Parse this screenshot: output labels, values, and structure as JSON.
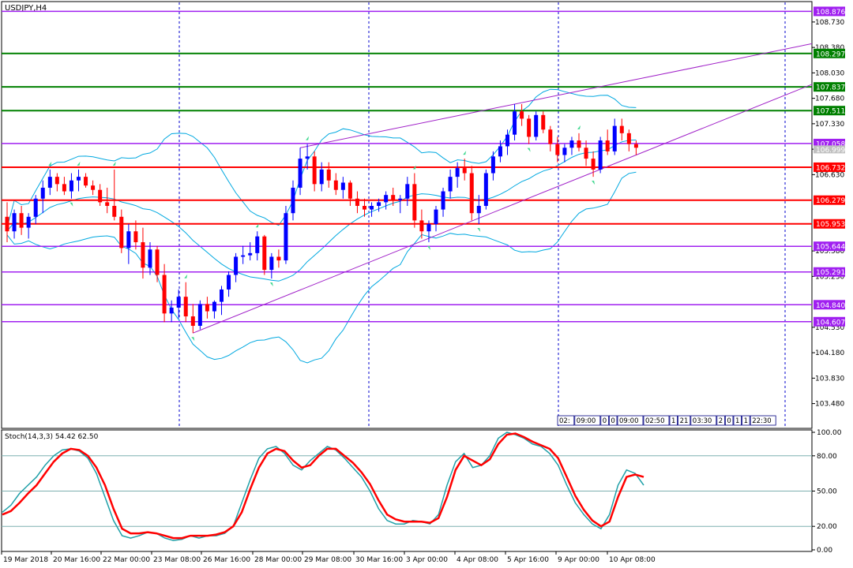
{
  "chart_data": [
    {
      "type": "candlestick",
      "title": "USDJPY,H4",
      "y_ticks": [
        "108.730",
        "108.380",
        "108.030",
        "107.680",
        "107.330",
        "106.980",
        "106.630",
        "105.580",
        "105.230",
        "104.530",
        "104.180",
        "103.830",
        "103.480"
      ],
      "y_range": [
        103.15,
        109.0
      ],
      "x_ticks": [
        "19 Mar 2018",
        "20 Mar 16:00",
        "22 Mar 00:00",
        "23 Mar 08:00",
        "26 Mar 16:00",
        "28 Mar 00:00",
        "29 Mar 08:00",
        "30 Mar 16:00",
        "3 Apr 00:00",
        "4 Apr 08:00",
        "5 Apr 16:00",
        "9 Apr 00:00",
        "10 Apr 08:00"
      ],
      "colors": {
        "bull": "#0000ff",
        "bear": "#ff0000",
        "bands": "#00a8e0",
        "trend": "#a020c8",
        "fractal": "#40d890"
      },
      "levels": [
        {
          "value": "108.876",
          "color": "#a020f0"
        },
        {
          "value": "108.297",
          "color": "#008000"
        },
        {
          "value": "107.837",
          "color": "#008000"
        },
        {
          "value": "107.511",
          "color": "#008000"
        },
        {
          "value": "107.058",
          "color": "#a020f0"
        },
        {
          "value": "106.732",
          "color": "#ff0000"
        },
        {
          "value": "106.279",
          "color": "#ff0000"
        },
        {
          "value": "105.953",
          "color": "#ff0000"
        },
        {
          "value": "105.644",
          "color": "#a020f0"
        },
        {
          "value": "105.291",
          "color": "#a020f0"
        },
        {
          "value": "104.840",
          "color": "#a020f0"
        },
        {
          "value": "104.607",
          "color": "#a020f0"
        }
      ],
      "current_price": "106.999",
      "time_box": [
        "02:",
        "09:00",
        "0",
        "0",
        "09:00",
        "02:50",
        "1",
        "21",
        "03:30",
        "2",
        "0",
        "1",
        "1",
        "22:30"
      ],
      "candles": [
        [
          106.05,
          106.25,
          105.7,
          105.85
        ],
        [
          105.85,
          106.15,
          105.75,
          106.1
        ],
        [
          106.1,
          106.2,
          105.8,
          105.9
        ],
        [
          105.9,
          106.1,
          105.75,
          106.05
        ],
        [
          106.05,
          106.35,
          105.95,
          106.3
        ],
        [
          106.3,
          106.55,
          106.1,
          106.45
        ],
        [
          106.45,
          106.7,
          106.35,
          106.6
        ],
        [
          106.6,
          106.65,
          106.4,
          106.5
        ],
        [
          106.5,
          106.6,
          106.35,
          106.4
        ],
        [
          106.4,
          106.65,
          106.3,
          106.55
        ],
        [
          106.55,
          106.7,
          106.4,
          106.6
        ],
        [
          106.6,
          106.65,
          106.45,
          106.48
        ],
        [
          106.48,
          106.55,
          106.35,
          106.42
        ],
        [
          106.42,
          106.5,
          106.2,
          106.25
        ],
        [
          106.25,
          106.45,
          106.1,
          106.2
        ],
        [
          106.2,
          106.7,
          106.0,
          106.05
        ],
        [
          106.05,
          106.15,
          105.55,
          105.62
        ],
        [
          105.62,
          105.95,
          105.4,
          105.85
        ],
        [
          105.85,
          106.0,
          105.6,
          105.7
        ],
        [
          105.7,
          105.9,
          105.2,
          105.35
        ],
        [
          105.35,
          105.7,
          105.25,
          105.6
        ],
        [
          105.6,
          105.65,
          105.15,
          105.25
        ],
        [
          105.25,
          105.4,
          104.6,
          104.72
        ],
        [
          104.72,
          104.9,
          104.6,
          104.8
        ],
        [
          104.8,
          105.05,
          104.65,
          104.95
        ],
        [
          104.95,
          105.15,
          104.6,
          104.68
        ],
        [
          104.68,
          104.85,
          104.45,
          104.55
        ],
        [
          104.55,
          104.9,
          104.5,
          104.85
        ],
        [
          104.85,
          104.95,
          104.65,
          104.75
        ],
        [
          104.75,
          104.9,
          104.65,
          104.88
        ],
        [
          104.88,
          105.1,
          104.7,
          105.05
        ],
        [
          105.05,
          105.3,
          104.95,
          105.25
        ],
        [
          105.25,
          105.55,
          105.15,
          105.5
        ],
        [
          105.5,
          105.65,
          105.4,
          105.52
        ],
        [
          105.52,
          105.7,
          105.45,
          105.55
        ],
        [
          105.55,
          105.85,
          105.45,
          105.78
        ],
        [
          105.78,
          105.8,
          105.25,
          105.32
        ],
        [
          105.32,
          105.55,
          105.2,
          105.5
        ],
        [
          105.5,
          105.6,
          105.35,
          105.45
        ],
        [
          105.45,
          106.2,
          105.4,
          106.1
        ],
        [
          106.1,
          106.55,
          106.0,
          106.45
        ],
        [
          106.45,
          107.0,
          106.35,
          106.85
        ],
        [
          106.85,
          107.05,
          106.7,
          106.88
        ],
        [
          106.88,
          106.95,
          106.4,
          106.5
        ],
        [
          106.5,
          106.8,
          106.4,
          106.7
        ],
        [
          106.7,
          106.8,
          106.45,
          106.55
        ],
        [
          106.55,
          106.65,
          106.35,
          106.42
        ],
        [
          106.42,
          106.6,
          106.3,
          106.52
        ],
        [
          106.52,
          106.55,
          106.2,
          106.3
        ],
        [
          106.3,
          106.4,
          106.1,
          106.2
        ],
        [
          106.2,
          106.3,
          106.05,
          106.15
        ],
        [
          106.15,
          106.25,
          106.05,
          106.2
        ],
        [
          106.2,
          106.3,
          106.12,
          106.25
        ],
        [
          106.25,
          106.4,
          106.15,
          106.35
        ],
        [
          106.35,
          106.45,
          106.2,
          106.28
        ],
        [
          106.28,
          106.35,
          106.1,
          106.3
        ],
        [
          106.3,
          106.6,
          106.2,
          106.5
        ],
        [
          106.5,
          106.65,
          105.9,
          106.0
        ],
        [
          106.0,
          106.15,
          105.75,
          105.85
        ],
        [
          105.85,
          106.0,
          105.7,
          105.95
        ],
        [
          105.95,
          106.2,
          105.85,
          106.15
        ],
        [
          106.15,
          106.45,
          106.05,
          106.4
        ],
        [
          106.4,
          106.7,
          106.3,
          106.6
        ],
        [
          106.6,
          106.8,
          106.45,
          106.72
        ],
        [
          106.72,
          106.85,
          106.55,
          106.65
        ],
        [
          106.65,
          106.75,
          106.0,
          106.1
        ],
        [
          106.1,
          106.35,
          105.95,
          106.2
        ],
        [
          106.2,
          106.7,
          106.15,
          106.65
        ],
        [
          106.65,
          106.95,
          106.55,
          106.88
        ],
        [
          106.88,
          107.1,
          106.8,
          107.02
        ],
        [
          107.02,
          107.25,
          106.9,
          107.18
        ],
        [
          107.18,
          107.6,
          107.1,
          107.5
        ],
        [
          107.5,
          107.6,
          107.3,
          107.4
        ],
        [
          107.4,
          107.45,
          107.05,
          107.15
        ],
        [
          107.15,
          107.5,
          107.1,
          107.45
        ],
        [
          107.45,
          107.5,
          107.2,
          107.25
        ],
        [
          107.25,
          107.3,
          106.95,
          107.05
        ],
        [
          107.05,
          107.15,
          106.8,
          106.9
        ],
        [
          106.9,
          107.05,
          106.8,
          107.0
        ],
        [
          107.0,
          107.15,
          106.9,
          107.1
        ],
        [
          107.1,
          107.2,
          106.95,
          107.0
        ],
        [
          107.0,
          107.1,
          106.75,
          106.85
        ],
        [
          106.85,
          106.95,
          106.6,
          106.7
        ],
        [
          106.7,
          107.15,
          106.65,
          107.1
        ],
        [
          107.1,
          107.25,
          106.9,
          106.95
        ],
        [
          106.95,
          107.4,
          106.9,
          107.3
        ],
        [
          107.3,
          107.4,
          107.1,
          107.2
        ],
        [
          107.2,
          107.25,
          106.95,
          107.05
        ],
        [
          107.05,
          107.1,
          106.9,
          107.0
        ]
      ]
    },
    {
      "type": "line",
      "title": "Stoch(14,3,3) 54.42 62.50",
      "y_ticks": [
        "100.00",
        "80.00",
        "50.00",
        "20.00",
        "0.00"
      ],
      "y_range": [
        0,
        100
      ],
      "levels": [
        80,
        50,
        20
      ],
      "series": [
        {
          "color": "#20a0a8",
          "values": [
            32,
            38,
            48,
            55,
            62,
            72,
            80,
            85,
            86,
            84,
            78,
            65,
            45,
            25,
            12,
            10,
            12,
            15,
            14,
            10,
            8,
            9,
            12,
            10,
            12,
            12,
            14,
            20,
            40,
            60,
            78,
            86,
            88,
            82,
            72,
            68,
            76,
            82,
            88,
            85,
            78,
            70,
            62,
            50,
            35,
            25,
            22,
            22,
            25,
            24,
            22,
            30,
            55,
            75,
            82,
            70,
            72,
            80,
            95,
            100,
            98,
            95,
            90,
            88,
            82,
            72,
            55,
            40,
            30,
            22,
            18,
            30,
            55,
            68,
            65,
            55
          ]
        },
        {
          "color": "#ff0000",
          "values": [
            30,
            33,
            40,
            48,
            55,
            65,
            75,
            82,
            86,
            85,
            80,
            70,
            55,
            35,
            18,
            14,
            14,
            15,
            14,
            12,
            10,
            10,
            12,
            12,
            12,
            13,
            15,
            20,
            32,
            52,
            70,
            82,
            86,
            84,
            76,
            70,
            72,
            80,
            86,
            86,
            80,
            74,
            66,
            56,
            42,
            30,
            26,
            24,
            24,
            24,
            23,
            27,
            45,
            68,
            80,
            76,
            72,
            77,
            90,
            98,
            99,
            96,
            92,
            89,
            86,
            78,
            62,
            46,
            34,
            25,
            20,
            24,
            45,
            62,
            64,
            62
          ]
        }
      ]
    }
  ],
  "x_axis_ticks_bottom": [
    "19 Mar 2018",
    "20 Mar 16:00",
    "22 Mar 00:00",
    "23 Mar 08:00",
    "26 Mar 16:00",
    "28 Mar 00:00",
    "29 Mar 08:00",
    "30 Mar 16:00",
    "3 Apr 00:00",
    "4 Apr 08:00",
    "5 Apr 16:00",
    "9 Apr 00:00",
    "10 Apr 08:00"
  ]
}
